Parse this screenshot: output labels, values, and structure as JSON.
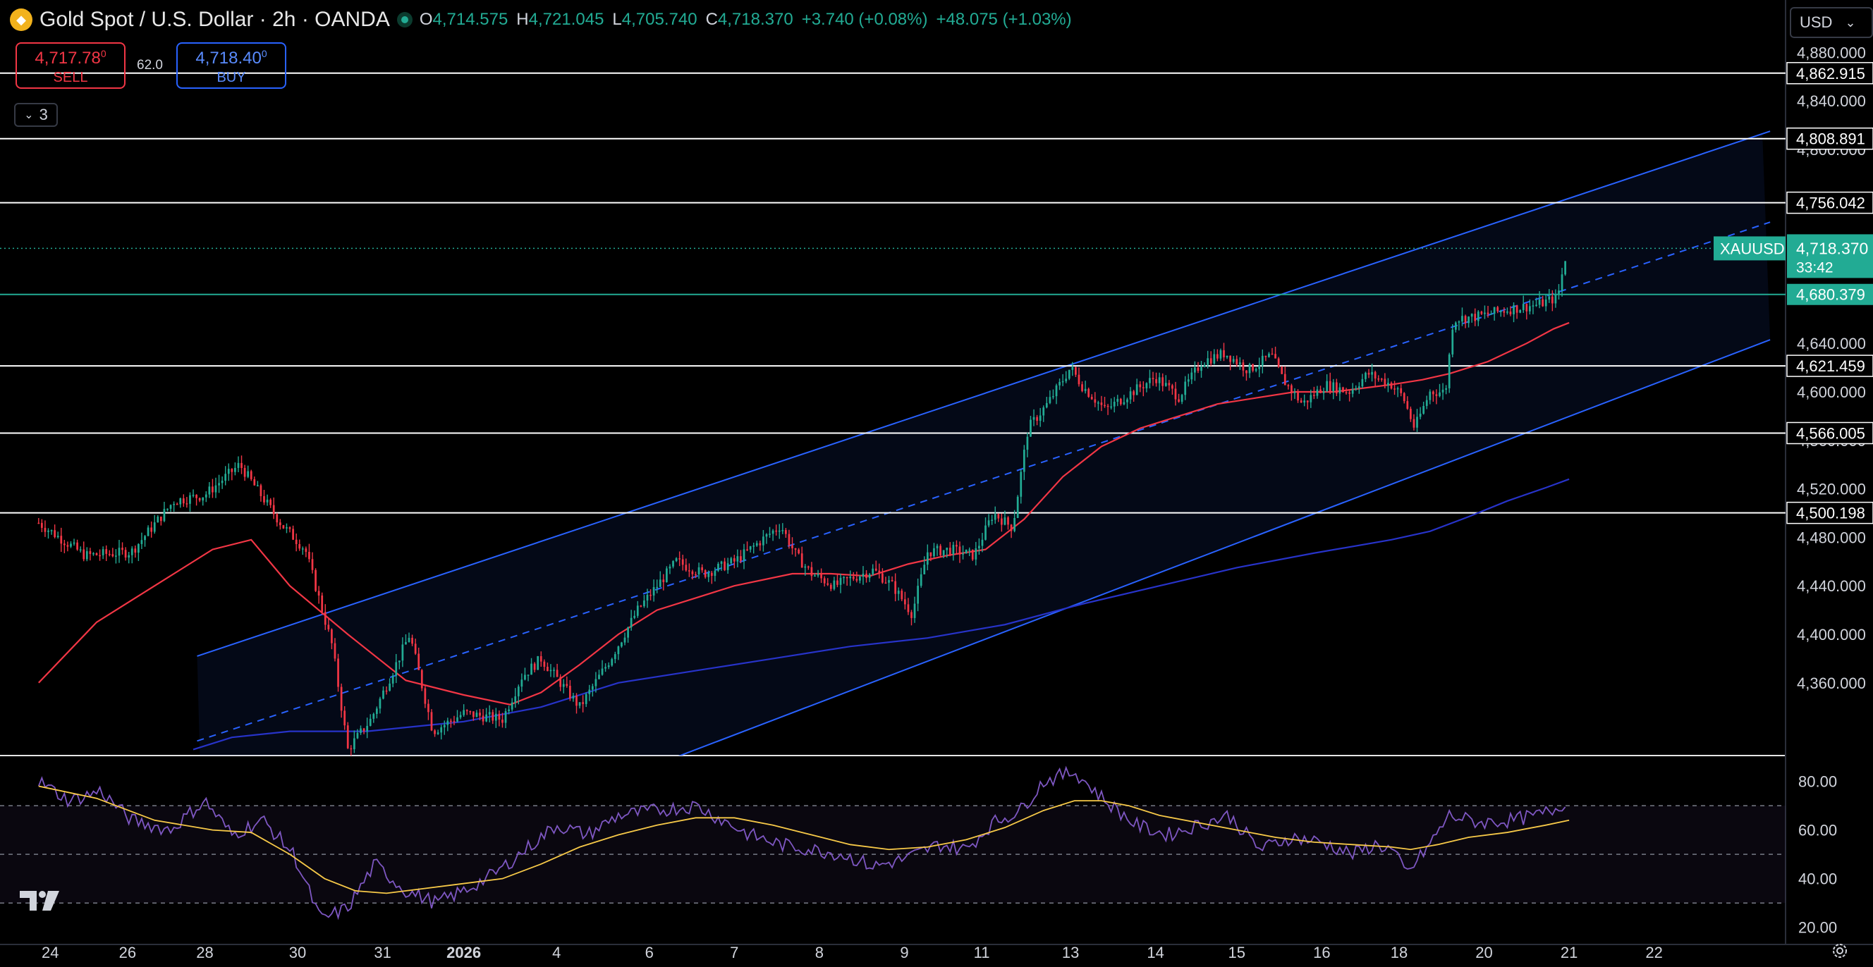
{
  "header": {
    "title": "Gold Spot / U.S. Dollar · 2h · OANDA",
    "ohlc": [
      {
        "k": "O",
        "v": "4,714.575"
      },
      {
        "k": "H",
        "v": "4,721.045"
      },
      {
        "k": "L",
        "v": "4,705.740"
      },
      {
        "k": "C",
        "v": "4,718.370"
      },
      {
        "k": "",
        "v": "+3.740 (+0.08%)"
      },
      {
        "k": "",
        "v": "+48.075 (+1.03%)"
      }
    ]
  },
  "trade": {
    "sell_price": "4,717.78",
    "sell_price_sup": "0",
    "sell_label": "SELL",
    "spread": "62.0",
    "buy_price": "4,718.40",
    "buy_price_sup": "0",
    "buy_label": "BUY"
  },
  "indicators_collapsed_count": "3",
  "currency": "USD",
  "colors": {
    "bull": "#22ab94",
    "bear": "#f23645",
    "channel": "#2962ff",
    "ma_red": "#f23645",
    "ma_blue": "#2733c9",
    "rsi": "#7e57c2",
    "rsi_ma": "#f7c948"
  },
  "chart_data": {
    "type": "candlestick",
    "symbol": "XAUUSD",
    "timeframe": "2h",
    "ylim": [
      4300,
      4900
    ],
    "y_ticks": [
      "4,880.000",
      "4,840.000",
      "4,800.000",
      "4,760.000",
      "4,720.000",
      "4,680.000",
      "4,640.000",
      "4,600.000",
      "4,560.000",
      "4,520.000",
      "4,480.000",
      "4,440.000",
      "4,400.000",
      "4,360.000"
    ],
    "x_ticks": [
      {
        "t": 0.3,
        "label": "24"
      },
      {
        "t": 2.3,
        "label": "26"
      },
      {
        "t": 4.3,
        "label": "28"
      },
      {
        "t": 6.7,
        "label": "30"
      },
      {
        "t": 8.9,
        "label": "31"
      },
      {
        "t": 11.0,
        "label": "2026"
      },
      {
        "t": 13.4,
        "label": "4"
      },
      {
        "t": 15.8,
        "label": "6"
      },
      {
        "t": 18.0,
        "label": "7"
      },
      {
        "t": 20.2,
        "label": "8"
      },
      {
        "t": 22.4,
        "label": "9"
      },
      {
        "t": 24.4,
        "label": "11"
      },
      {
        "t": 26.7,
        "label": "13"
      },
      {
        "t": 28.9,
        "label": "14"
      },
      {
        "t": 31.0,
        "label": "15"
      },
      {
        "t": 33.2,
        "label": "16"
      },
      {
        "t": 35.2,
        "label": "18"
      },
      {
        "t": 37.4,
        "label": "20"
      },
      {
        "t": 39.6,
        "label": "21"
      },
      {
        "t": 41.8,
        "label": "22"
      }
    ],
    "horizontal_levels": [
      {
        "price": 4862.915,
        "label": "4,862.915",
        "color": "#ffffff"
      },
      {
        "price": 4808.891,
        "label": "4,808.891",
        "color": "#ffffff"
      },
      {
        "price": 4756.042,
        "label": "4,756.042",
        "color": "#ffffff"
      },
      {
        "price": 4680.379,
        "label": "4,680.379",
        "color": "#22ab94"
      },
      {
        "price": 4621.459,
        "label": "4,621.459",
        "color": "#ffffff"
      },
      {
        "price": 4566.005,
        "label": "4,566.005",
        "color": "#ffffff"
      },
      {
        "price": 4500.198,
        "label": "4,500.198",
        "color": "#ffffff"
      }
    ],
    "last_price": {
      "price": 4718.37,
      "label": "4,718.370",
      "countdown": "33:42",
      "ticker": "XAUUSD"
    },
    "channel": {
      "upper": [
        [
          4.1,
          4382
        ],
        [
          44.8,
          4815
        ]
      ],
      "middle": [
        [
          4.1,
          4312
        ],
        [
          44.8,
          4740
        ]
      ],
      "lower": [
        [
          16.6,
          4300
        ],
        [
          44.8,
          4643
        ]
      ]
    },
    "key_points": [
      [
        0,
        4492
      ],
      [
        1.2,
        4465
      ],
      [
        2.4,
        4468
      ],
      [
        3.5,
        4510
      ],
      [
        4.3,
        4515
      ],
      [
        5.2,
        4540
      ],
      [
        6.3,
        4490
      ],
      [
        6.9,
        4470
      ],
      [
        7.6,
        4390
      ],
      [
        8.0,
        4305
      ],
      [
        8.6,
        4330
      ],
      [
        9.6,
        4400
      ],
      [
        10.2,
        4320
      ],
      [
        11.0,
        4335
      ],
      [
        12.0,
        4330
      ],
      [
        12.5,
        4365
      ],
      [
        13.0,
        4380
      ],
      [
        14.0,
        4340
      ],
      [
        14.8,
        4380
      ],
      [
        15.5,
        4420
      ],
      [
        16.5,
        4460
      ],
      [
        17.2,
        4450
      ],
      [
        18.0,
        4460
      ],
      [
        18.6,
        4475
      ],
      [
        19.2,
        4490
      ],
      [
        19.6,
        4465
      ],
      [
        20.0,
        4450
      ],
      [
        20.6,
        4440
      ],
      [
        21.0,
        4446
      ],
      [
        21.6,
        4453
      ],
      [
        22.1,
        4440
      ],
      [
        22.6,
        4417
      ],
      [
        23.0,
        4468
      ],
      [
        23.6,
        4470
      ],
      [
        24.2,
        4465
      ],
      [
        24.7,
        4500
      ],
      [
        25.2,
        4488
      ],
      [
        25.6,
        4570
      ],
      [
        26.1,
        4590
      ],
      [
        26.7,
        4620
      ],
      [
        27.0,
        4605
      ],
      [
        27.6,
        4585
      ],
      [
        28.2,
        4598
      ],
      [
        28.9,
        4612
      ],
      [
        29.5,
        4596
      ],
      [
        30.1,
        4625
      ],
      [
        30.7,
        4632
      ],
      [
        31.3,
        4618
      ],
      [
        31.9,
        4630
      ],
      [
        32.2,
        4610
      ],
      [
        32.7,
        4590
      ],
      [
        33.3,
        4606
      ],
      [
        33.9,
        4600
      ],
      [
        34.4,
        4615
      ],
      [
        35.0,
        4606
      ],
      [
        35.3,
        4596
      ],
      [
        35.6,
        4570
      ],
      [
        36.0,
        4600
      ],
      [
        36.4,
        4600
      ],
      [
        36.6,
        4660
      ],
      [
        37.2,
        4662
      ],
      [
        38.0,
        4668
      ],
      [
        38.8,
        4672
      ],
      [
        39.3,
        4678
      ],
      [
        39.55,
        4718
      ]
    ],
    "ma_red": [
      [
        0.0,
        4360
      ],
      [
        1.5,
        4410
      ],
      [
        3.0,
        4440
      ],
      [
        4.5,
        4470
      ],
      [
        5.5,
        4478
      ],
      [
        6.5,
        4440
      ],
      [
        8.0,
        4400
      ],
      [
        9.5,
        4362
      ],
      [
        11.0,
        4350
      ],
      [
        12.2,
        4342
      ],
      [
        13.0,
        4352
      ],
      [
        14.0,
        4375
      ],
      [
        15.0,
        4400
      ],
      [
        16.0,
        4420
      ],
      [
        17.0,
        4430
      ],
      [
        18.0,
        4440
      ],
      [
        19.5,
        4450
      ],
      [
        20.5,
        4450
      ],
      [
        21.5,
        4448
      ],
      [
        22.5,
        4458
      ],
      [
        23.5,
        4465
      ],
      [
        24.5,
        4470
      ],
      [
        25.5,
        4495
      ],
      [
        26.5,
        4530
      ],
      [
        27.5,
        4555
      ],
      [
        28.5,
        4570
      ],
      [
        29.5,
        4580
      ],
      [
        30.5,
        4590
      ],
      [
        31.5,
        4595
      ],
      [
        32.5,
        4600
      ],
      [
        33.5,
        4600
      ],
      [
        34.5,
        4604
      ],
      [
        35.0,
        4606
      ],
      [
        35.8,
        4610
      ],
      [
        36.5,
        4615
      ],
      [
        37.5,
        4625
      ],
      [
        38.5,
        4640
      ],
      [
        39.2,
        4652
      ],
      [
        39.6,
        4657
      ]
    ],
    "ma_blue": [
      [
        4.0,
        4305
      ],
      [
        5.0,
        4315
      ],
      [
        6.5,
        4320
      ],
      [
        8.5,
        4320
      ],
      [
        11.0,
        4328
      ],
      [
        13.0,
        4340
      ],
      [
        15.0,
        4360
      ],
      [
        17.0,
        4370
      ],
      [
        19.0,
        4380
      ],
      [
        21.0,
        4390
      ],
      [
        23.0,
        4397
      ],
      [
        25.0,
        4408
      ],
      [
        27.0,
        4425
      ],
      [
        29.0,
        4440
      ],
      [
        31.0,
        4455
      ],
      [
        33.0,
        4467
      ],
      [
        35.0,
        4478
      ],
      [
        36.0,
        4485
      ],
      [
        37.0,
        4497
      ],
      [
        38.0,
        4510
      ],
      [
        39.0,
        4521
      ],
      [
        39.6,
        4528
      ]
    ],
    "rsi": {
      "ylim": [
        15,
        90
      ],
      "y_ticks": [
        "80.00",
        "60.00",
        "40.00",
        "20.00"
      ],
      "bands": [
        70,
        50,
        30
      ],
      "key_points": [
        [
          0,
          80
        ],
        [
          0.8,
          72
        ],
        [
          1.6,
          76
        ],
        [
          2.4,
          64
        ],
        [
          3.4,
          60
        ],
        [
          4.3,
          72
        ],
        [
          5.0,
          58
        ],
        [
          5.8,
          64
        ],
        [
          6.6,
          50
        ],
        [
          7.3,
          23
        ],
        [
          8.0,
          28
        ],
        [
          8.7,
          46
        ],
        [
          9.5,
          35
        ],
        [
          10.3,
          30
        ],
        [
          11.0,
          35
        ],
        [
          11.8,
          42
        ],
        [
          12.6,
          52
        ],
        [
          13.4,
          62
        ],
        [
          14.2,
          58
        ],
        [
          15.0,
          66
        ],
        [
          16.0,
          68
        ],
        [
          17.0,
          70
        ],
        [
          17.7,
          64
        ],
        [
          18.4,
          58
        ],
        [
          19.2,
          54
        ],
        [
          20.0,
          52
        ],
        [
          20.8,
          50
        ],
        [
          21.6,
          45
        ],
        [
          22.4,
          48
        ],
        [
          23.3,
          54
        ],
        [
          24.0,
          52
        ],
        [
          24.7,
          63
        ],
        [
          25.4,
          68
        ],
        [
          26.0,
          80
        ],
        [
          26.8,
          84
        ],
        [
          27.6,
          72
        ],
        [
          28.4,
          62
        ],
        [
          29.2,
          58
        ],
        [
          30.0,
          62
        ],
        [
          30.8,
          66
        ],
        [
          31.6,
          52
        ],
        [
          32.4,
          57
        ],
        [
          33.2,
          55
        ],
        [
          34.0,
          50
        ],
        [
          34.6,
          54
        ],
        [
          35.0,
          52
        ],
        [
          35.4,
          42
        ],
        [
          35.9,
          52
        ],
        [
          36.5,
          66
        ],
        [
          37.3,
          63
        ],
        [
          38.1,
          64
        ],
        [
          38.8,
          66
        ],
        [
          39.3,
          69
        ],
        [
          39.6,
          73
        ]
      ],
      "ma_points": [
        [
          0,
          78
        ],
        [
          1.5,
          73
        ],
        [
          3.0,
          64
        ],
        [
          4.5,
          60
        ],
        [
          5.5,
          59
        ],
        [
          6.5,
          50
        ],
        [
          7.4,
          40
        ],
        [
          8.2,
          35
        ],
        [
          9.0,
          34
        ],
        [
          10.0,
          36
        ],
        [
          11.0,
          38
        ],
        [
          12.0,
          40
        ],
        [
          13.0,
          46
        ],
        [
          14.0,
          53
        ],
        [
          15.0,
          58
        ],
        [
          16.0,
          62
        ],
        [
          17.0,
          65
        ],
        [
          18.0,
          65
        ],
        [
          19.0,
          62
        ],
        [
          20.0,
          58
        ],
        [
          21.0,
          54
        ],
        [
          22.0,
          52
        ],
        [
          23.0,
          53
        ],
        [
          24.0,
          56
        ],
        [
          25.0,
          61
        ],
        [
          26.0,
          68
        ],
        [
          26.8,
          72
        ],
        [
          27.5,
          72
        ],
        [
          28.2,
          70
        ],
        [
          29.0,
          66
        ],
        [
          30.0,
          63
        ],
        [
          31.0,
          60
        ],
        [
          32.0,
          57
        ],
        [
          33.0,
          55
        ],
        [
          34.0,
          54
        ],
        [
          35.0,
          53
        ],
        [
          35.5,
          52
        ],
        [
          36.2,
          54
        ],
        [
          37.0,
          57
        ],
        [
          38.0,
          59
        ],
        [
          39.0,
          62
        ],
        [
          39.6,
          64
        ]
      ]
    }
  }
}
